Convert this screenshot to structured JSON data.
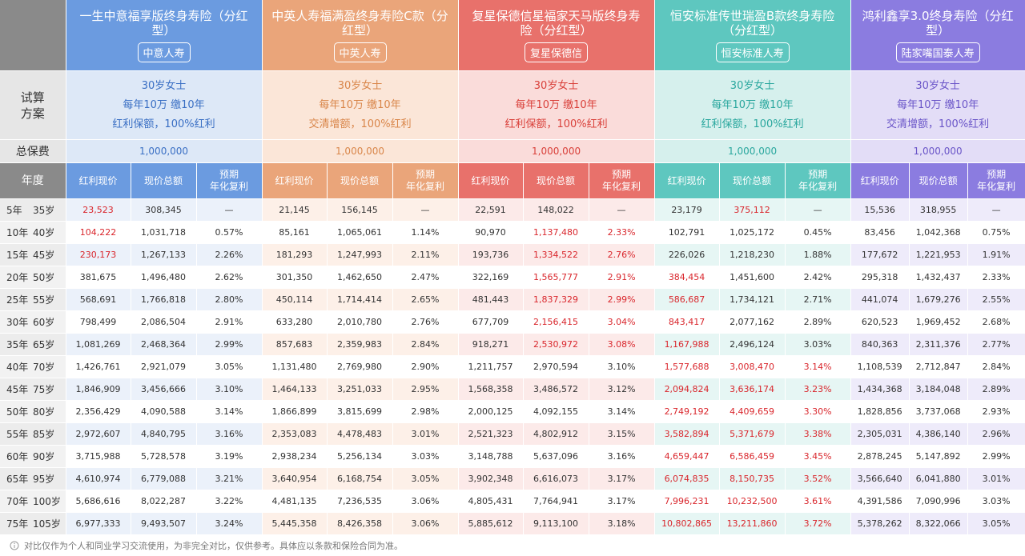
{
  "corner_labels": {
    "plan": [
      "试算",
      "方案"
    ],
    "premium": "总保费",
    "year": "年度"
  },
  "sub_headers": {
    "cash": "红利现价",
    "total": "现价总额",
    "rate": [
      "预期",
      "年化复利"
    ]
  },
  "highlight_color": "#d9262c",
  "products": [
    {
      "name": "一生中意福享版终身寿险（分红型）",
      "company": "中意人寿",
      "plan": [
        "30岁女士",
        "每年10万 缴10年",
        "红利保额，100%红利"
      ],
      "premium": "1,000,000",
      "color": "#6b9be0",
      "light": "#dde8f7",
      "text_color": "#3a6fc4"
    },
    {
      "name": "中英人寿福满盈终身寿险C款（分红型）",
      "company": "中英人寿",
      "plan": [
        "30岁女士",
        "每年10万 缴10年",
        "交清增额，100%红利"
      ],
      "premium": "1,000,000",
      "color": "#eaa57a",
      "light": "#fbe6d8",
      "text_color": "#d9864a"
    },
    {
      "name": "复星保德信星福家天马版终身寿险（分红型）",
      "company": "复星保德信",
      "plan": [
        "30岁女士",
        "每年10万 缴10年",
        "红利保额，100%红利"
      ],
      "premium": "1,000,000",
      "color": "#e8716b",
      "light": "#fadcda",
      "text_color": "#d9403a"
    },
    {
      "name": "恒安标准传世瑞盈B款终身寿险（分红型）",
      "company": "恒安标准人寿",
      "plan": [
        "30岁女士",
        "每年10万 缴10年",
        "红利保额，100%红利"
      ],
      "premium": "1,000,000",
      "color": "#5ec7bf",
      "light": "#d6f0ed",
      "text_color": "#2aa79e"
    },
    {
      "name": "鸿利鑫享3.0终身寿险（分红型）",
      "company": "陆家嘴国泰人寿",
      "plan": [
        "30岁女士",
        "每年10万 缴10年",
        "交清增额，100%红利"
      ],
      "premium": "1,000,000",
      "color": "#8b7ce0",
      "light": "#e3ddf7",
      "text_color": "#6a55c8"
    }
  ],
  "rows": [
    {
      "year": "5年",
      "age": "35岁",
      "cells": [
        "23,523",
        "308,345",
        "—",
        "21,145",
        "156,145",
        "—",
        "22,591",
        "148,022",
        "—",
        "23,179",
        "375,112",
        "—",
        "15,536",
        "318,955",
        "—"
      ],
      "highlight": [
        0,
        10
      ]
    },
    {
      "year": "10年",
      "age": "40岁",
      "cells": [
        "104,222",
        "1,031,718",
        "0.57%",
        "85,161",
        "1,065,061",
        "1.14%",
        "90,970",
        "1,137,480",
        "2.33%",
        "102,791",
        "1,025,172",
        "0.45%",
        "83,456",
        "1,042,368",
        "0.75%"
      ],
      "highlight": [
        0,
        7,
        8
      ]
    },
    {
      "year": "15年",
      "age": "45岁",
      "cells": [
        "230,173",
        "1,267,133",
        "2.26%",
        "181,293",
        "1,247,993",
        "2.11%",
        "193,736",
        "1,334,522",
        "2.76%",
        "226,026",
        "1,218,230",
        "1.88%",
        "177,672",
        "1,221,953",
        "1.91%"
      ],
      "highlight": [
        0,
        7,
        8
      ]
    },
    {
      "year": "20年",
      "age": "50岁",
      "cells": [
        "381,675",
        "1,496,480",
        "2.62%",
        "301,350",
        "1,462,650",
        "2.47%",
        "322,169",
        "1,565,777",
        "2.91%",
        "384,454",
        "1,451,600",
        "2.42%",
        "295,318",
        "1,432,437",
        "2.33%"
      ],
      "highlight": [
        7,
        8,
        9
      ]
    },
    {
      "year": "25年",
      "age": "55岁",
      "cells": [
        "568,691",
        "1,766,818",
        "2.80%",
        "450,114",
        "1,714,414",
        "2.65%",
        "481,443",
        "1,837,329",
        "2.99%",
        "586,687",
        "1,734,121",
        "2.71%",
        "441,074",
        "1,679,276",
        "2.55%"
      ],
      "highlight": [
        7,
        8,
        9
      ]
    },
    {
      "year": "30年",
      "age": "60岁",
      "cells": [
        "798,499",
        "2,086,504",
        "2.91%",
        "633,280",
        "2,010,780",
        "2.76%",
        "677,709",
        "2,156,415",
        "3.04%",
        "843,417",
        "2,077,162",
        "2.89%",
        "620,523",
        "1,969,452",
        "2.68%"
      ],
      "highlight": [
        7,
        8,
        9
      ]
    },
    {
      "year": "35年",
      "age": "65岁",
      "cells": [
        "1,081,269",
        "2,468,364",
        "2.99%",
        "857,683",
        "2,359,983",
        "2.84%",
        "918,271",
        "2,530,972",
        "3.08%",
        "1,167,988",
        "2,496,124",
        "3.03%",
        "840,363",
        "2,311,376",
        "2.77%"
      ],
      "highlight": [
        7,
        8,
        9
      ]
    },
    {
      "year": "40年",
      "age": "70岁",
      "cells": [
        "1,426,761",
        "2,921,079",
        "3.05%",
        "1,131,480",
        "2,769,980",
        "2.90%",
        "1,211,757",
        "2,970,594",
        "3.10%",
        "1,577,688",
        "3,008,470",
        "3.14%",
        "1,108,539",
        "2,712,847",
        "2.84%"
      ],
      "highlight": [
        9,
        10,
        11
      ]
    },
    {
      "year": "45年",
      "age": "75岁",
      "cells": [
        "1,846,909",
        "3,456,666",
        "3.10%",
        "1,464,133",
        "3,251,033",
        "2.95%",
        "1,568,358",
        "3,486,572",
        "3.12%",
        "2,094,824",
        "3,636,174",
        "3.23%",
        "1,434,368",
        "3,184,048",
        "2.89%"
      ],
      "highlight": [
        9,
        10,
        11
      ]
    },
    {
      "year": "50年",
      "age": "80岁",
      "cells": [
        "2,356,429",
        "4,090,588",
        "3.14%",
        "1,866,899",
        "3,815,699",
        "2.98%",
        "2,000,125",
        "4,092,155",
        "3.14%",
        "2,749,192",
        "4,409,659",
        "3.30%",
        "1,828,856",
        "3,737,068",
        "2.93%"
      ],
      "highlight": [
        9,
        10,
        11
      ]
    },
    {
      "year": "55年",
      "age": "85岁",
      "cells": [
        "2,972,607",
        "4,840,795",
        "3.16%",
        "2,353,083",
        "4,478,483",
        "3.01%",
        "2,521,323",
        "4,802,912",
        "3.15%",
        "3,582,894",
        "5,371,679",
        "3.38%",
        "2,305,031",
        "4,386,140",
        "2.96%"
      ],
      "highlight": [
        9,
        10,
        11
      ]
    },
    {
      "year": "60年",
      "age": "90岁",
      "cells": [
        "3,715,988",
        "5,728,578",
        "3.19%",
        "2,938,234",
        "5,256,134",
        "3.03%",
        "3,148,788",
        "5,637,096",
        "3.16%",
        "4,659,447",
        "6,586,459",
        "3.45%",
        "2,878,245",
        "5,147,892",
        "2.99%"
      ],
      "highlight": [
        9,
        10,
        11
      ]
    },
    {
      "year": "65年",
      "age": "95岁",
      "cells": [
        "4,610,974",
        "6,779,088",
        "3.21%",
        "3,640,954",
        "6,168,754",
        "3.05%",
        "3,902,348",
        "6,616,073",
        "3.17%",
        "6,074,835",
        "8,150,735",
        "3.52%",
        "3,566,640",
        "6,041,880",
        "3.01%"
      ],
      "highlight": [
        9,
        10,
        11
      ]
    },
    {
      "year": "70年",
      "age": "100岁",
      "cells": [
        "5,686,616",
        "8,022,287",
        "3.22%",
        "4,481,135",
        "7,236,535",
        "3.06%",
        "4,805,431",
        "7,764,941",
        "3.17%",
        "7,996,231",
        "10,232,500",
        "3.61%",
        "4,391,586",
        "7,090,996",
        "3.03%"
      ],
      "highlight": [
        9,
        10,
        11
      ]
    },
    {
      "year": "75年",
      "age": "105岁",
      "cells": [
        "6,977,333",
        "9,493,507",
        "3.24%",
        "5,445,358",
        "8,426,358",
        "3.06%",
        "5,885,612",
        "9,113,100",
        "3.18%",
        "10,802,865",
        "13,211,860",
        "3.72%",
        "5,378,262",
        "8,322,066",
        "3.05%"
      ],
      "highlight": [
        9,
        10,
        11
      ]
    }
  ],
  "footer": "对比仅作为个人和同业学习交流使用，为非完全对比，仅供参考。具体应以条款和保险合同为准。"
}
